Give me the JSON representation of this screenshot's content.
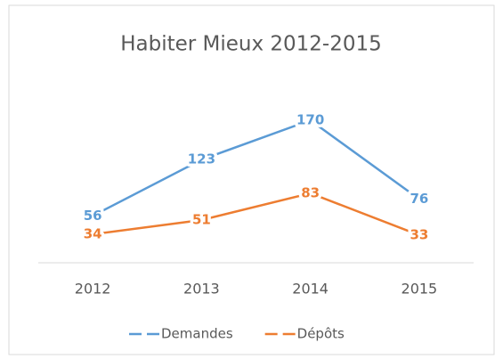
{
  "chart_data": {
    "type": "line",
    "title": "Habiter Mieux 2012-2015",
    "categories": [
      "2012",
      "2013",
      "2014",
      "2015"
    ],
    "series": [
      {
        "name": "Demandes",
        "color": "#5b9bd5",
        "values": [
          56,
          123,
          170,
          76
        ]
      },
      {
        "name": "Dépôts",
        "color": "#ed7d31",
        "values": [
          34,
          51,
          83,
          33
        ]
      }
    ]
  }
}
